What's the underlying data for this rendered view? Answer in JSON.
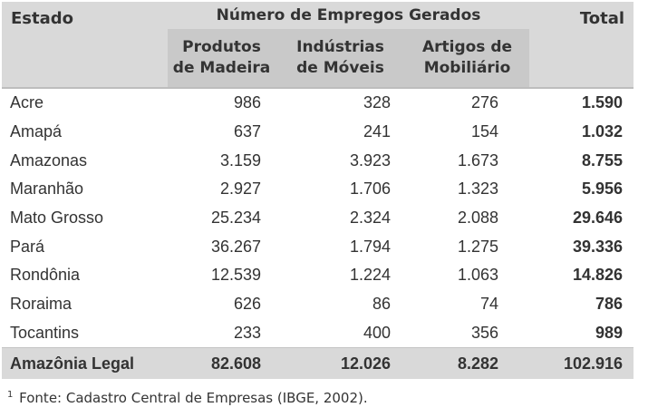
{
  "table": {
    "group_header": "Número de Empregos Gerados",
    "col_estado": "Estado",
    "col_total": "Total",
    "sub_headers": [
      {
        "line1": "Produtos",
        "line2": "de Madeira"
      },
      {
        "line1": "Indústrias",
        "line2": "de Móveis"
      },
      {
        "line1": "Artigos de",
        "line2": "Mobiliário"
      }
    ],
    "rows": [
      {
        "estado": "Acre",
        "madeira": "986",
        "moveis": "328",
        "mobiliario": "276",
        "total": "1.590"
      },
      {
        "estado": "Amapá",
        "madeira": "637",
        "moveis": "241",
        "mobiliario": "154",
        "total": "1.032"
      },
      {
        "estado": "Amazonas",
        "madeira": "3.159",
        "moveis": "3.923",
        "mobiliario": "1.673",
        "total": "8.755"
      },
      {
        "estado": "Maranhão",
        "madeira": "2.927",
        "moveis": "1.706",
        "mobiliario": "1.323",
        "total": "5.956"
      },
      {
        "estado": "Mato Grosso",
        "madeira": "25.234",
        "moveis": "2.324",
        "mobiliario": "2.088",
        "total": "29.646"
      },
      {
        "estado": "Pará",
        "madeira": "36.267",
        "moveis": "1.794",
        "mobiliario": "1.275",
        "total": "39.336"
      },
      {
        "estado": "Rondônia",
        "madeira": "12.539",
        "moveis": "1.224",
        "mobiliario": "1.063",
        "total": "14.826"
      },
      {
        "estado": "Roraima",
        "madeira": "626",
        "moveis": "86",
        "mobiliario": "74",
        "total": "786"
      },
      {
        "estado": "Tocantins",
        "madeira": "233",
        "moveis": "400",
        "mobiliario": "356",
        "total": "989"
      }
    ],
    "total_row": {
      "estado": "Amazônia Legal",
      "madeira": "82.608",
      "moveis": "12.026",
      "mobiliario": "8.282",
      "total": "102.916"
    }
  },
  "footnote": {
    "marker": "1",
    "text": "Fonte: Cadastro Central de Empresas (IBGE, 2002)."
  }
}
